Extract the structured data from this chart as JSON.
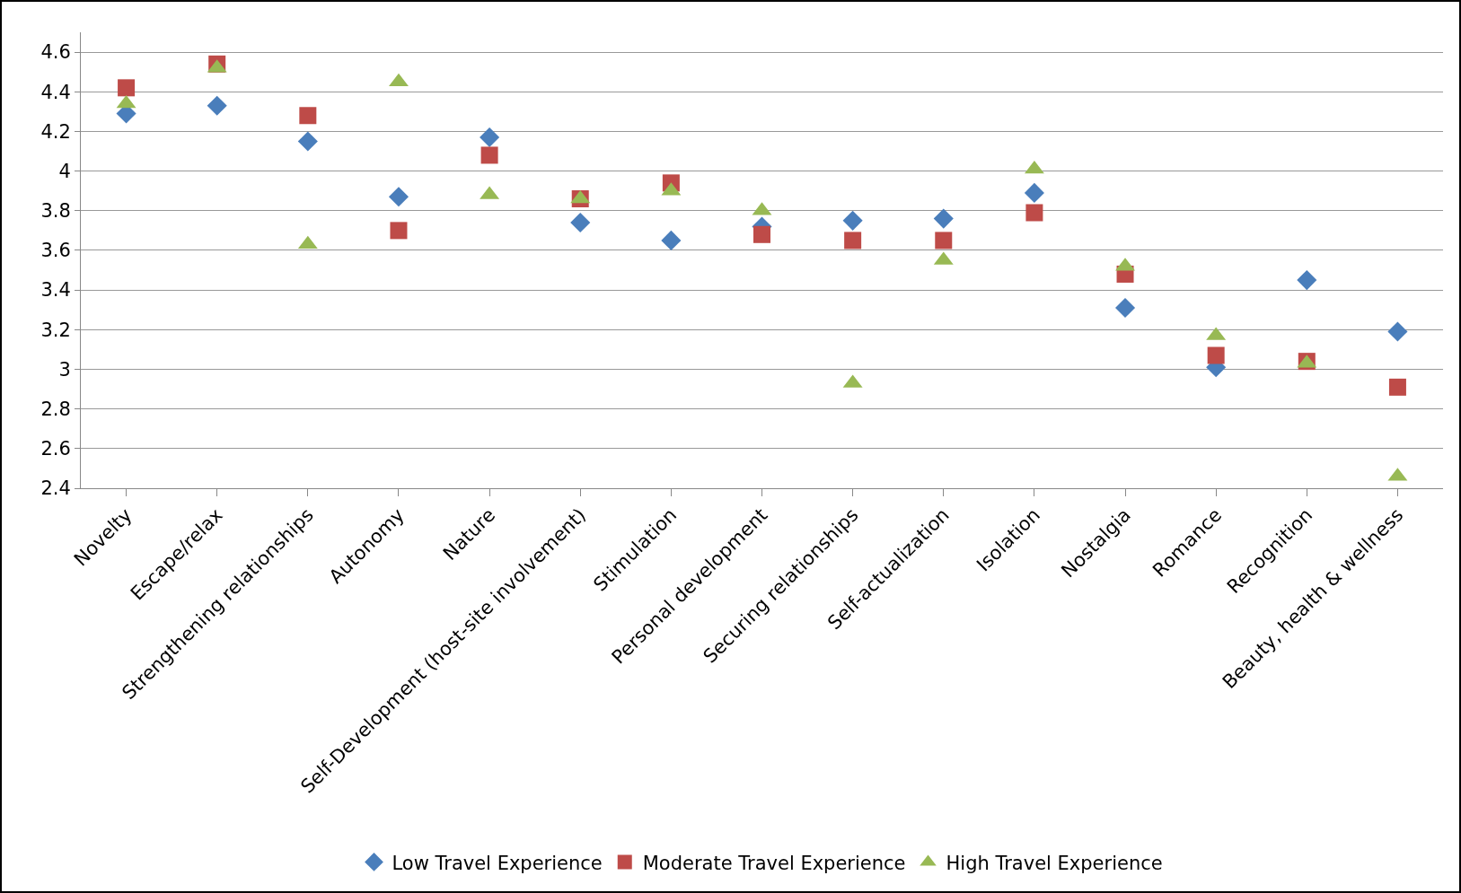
{
  "chart_data": {
    "type": "scatter",
    "categories": [
      "Novelty",
      "Escape/relax",
      "Strengthening relationships",
      "Autonomy",
      "Nature",
      "Self-Development (host-site involvement)",
      "Stimulation",
      "Personal development",
      "Securing relationships",
      "Self-actualization",
      "Isolation",
      "Nostalgia",
      "Romance",
      "Recognition",
      "Beauty, health & wellness"
    ],
    "series": [
      {
        "name": "Low Travel Experience",
        "color": "#4a7ebb",
        "marker": "diamond",
        "values": [
          4.29,
          4.33,
          4.15,
          3.87,
          4.17,
          3.74,
          3.65,
          3.72,
          3.75,
          3.76,
          3.89,
          3.31,
          3.01,
          3.45,
          3.19
        ]
      },
      {
        "name": "Moderate Travel Experience",
        "color": "#be4b48",
        "marker": "square",
        "values": [
          4.42,
          4.54,
          4.28,
          3.7,
          4.08,
          3.86,
          3.94,
          3.68,
          3.65,
          3.65,
          3.79,
          3.48,
          3.07,
          3.04,
          2.91
        ]
      },
      {
        "name": "High Travel Experience",
        "color": "#98b954",
        "marker": "triangle",
        "values": [
          4.34,
          4.52,
          3.63,
          4.45,
          3.88,
          3.86,
          3.9,
          3.8,
          2.93,
          3.55,
          4.01,
          3.52,
          3.17,
          3.03,
          2.46
        ]
      }
    ],
    "ylim": [
      2.4,
      4.7
    ],
    "yticks": [
      2.4,
      2.6,
      2.8,
      3,
      3.2,
      3.4,
      3.6,
      3.8,
      4,
      4.2,
      4.4,
      4.6
    ],
    "grid": "y",
    "legend": "bottom"
  }
}
